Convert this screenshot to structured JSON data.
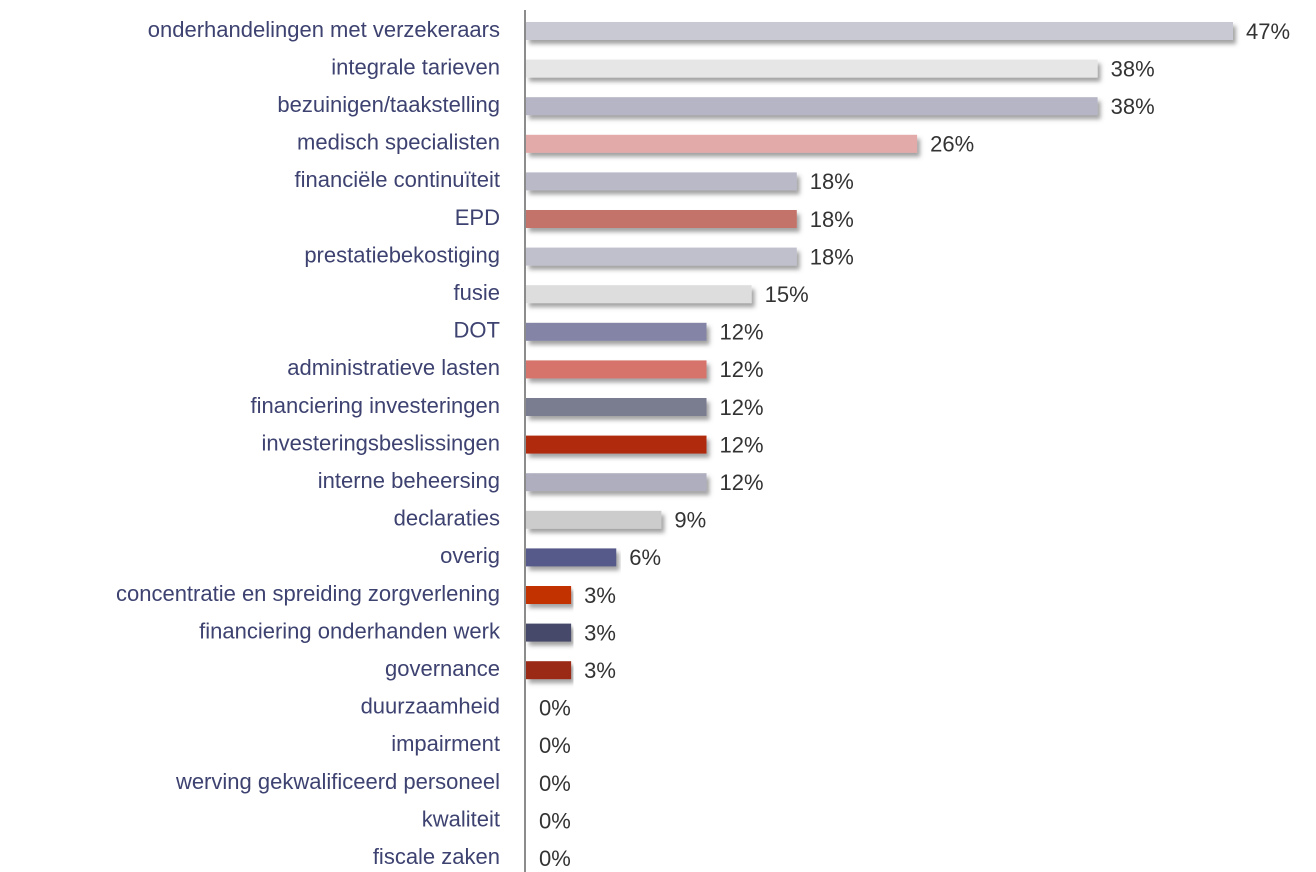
{
  "chart_data": {
    "type": "bar",
    "orientation": "horizontal",
    "categories": [
      "onderhandelingen met verzekeraars",
      "integrale tarieven",
      "bezuinigen/taakstelling",
      "medisch specialisten",
      "financiële continuïteit",
      "EPD",
      "prestatiebekostiging",
      "fusie",
      "DOT",
      "administratieve lasten",
      "financiering investeringen",
      "investeringsbeslissingen",
      "interne beheersing",
      "declaraties",
      "overig",
      "concentratie en spreiding zorgverlening",
      "financiering onderhanden werk",
      "governance",
      "duurzaamheid",
      "impairment",
      "werving gekwalificeerd personeel",
      "kwaliteit",
      "fiscale zaken"
    ],
    "values": [
      47,
      38,
      38,
      26,
      18,
      18,
      18,
      15,
      12,
      12,
      12,
      12,
      12,
      9,
      6,
      3,
      3,
      3,
      0,
      0,
      0,
      0,
      0
    ],
    "value_labels": [
      "47%",
      "38%",
      "38%",
      "26%",
      "18%",
      "18%",
      "18%",
      "15%",
      "12%",
      "12%",
      "12%",
      "12%",
      "12%",
      "9%",
      "6%",
      "3%",
      "3%",
      "3%",
      "0%",
      "0%",
      "0%",
      "0%",
      "0%"
    ],
    "colors": [
      "#c8c9d3",
      "#e6e6e6",
      "#b5b5c6",
      "#e2aaa8",
      "#b9b9c8",
      "#c4736a",
      "#c0c0cc",
      "#dddddd",
      "#8485a6",
      "#d6736a",
      "#7a7b90",
      "#b02a0c",
      "#aeaebf",
      "#cccccc",
      "#565a8a",
      "#c23000",
      "#474a6a",
      "#9a2a12",
      "#cccccc",
      "#cccccc",
      "#cccccc",
      "#cccccc",
      "#cccccc"
    ]
  }
}
